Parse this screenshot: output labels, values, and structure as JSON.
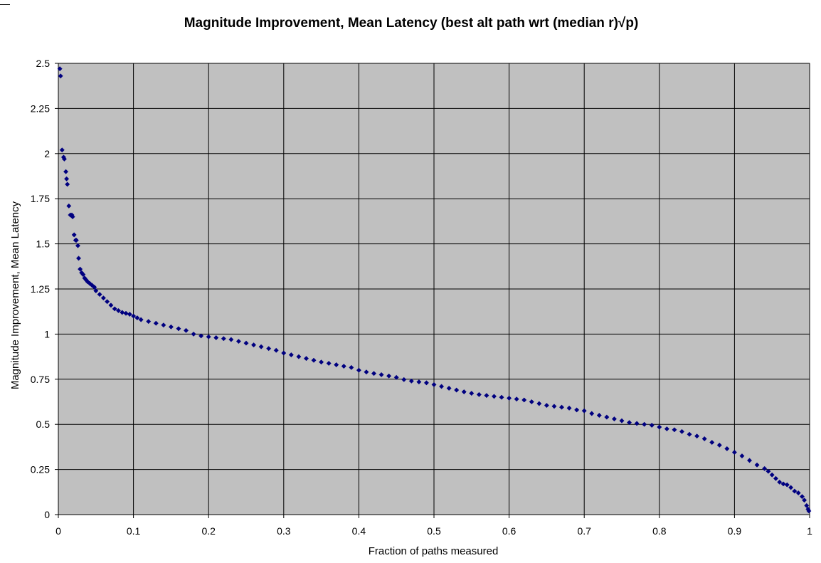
{
  "chart_data": {
    "type": "scatter",
    "title": "Magnitude Improvement, Mean Latency (best alt path wrt (median r)√p)",
    "xlabel": "Fraction of paths measured",
    "ylabel": "Magnitude Improvement, Mean Latency",
    "xlim": [
      0,
      1
    ],
    "ylim": [
      0,
      2.5
    ],
    "x_ticks": [
      "0",
      "0.1",
      "0.2",
      "0.3",
      "0.4",
      "0.5",
      "0.6",
      "0.7",
      "0.8",
      "0.9",
      "1"
    ],
    "y_ticks": [
      "0",
      "0.25",
      "0.5",
      "0.75",
      "1",
      "1.25",
      "1.5",
      "1.75",
      "2",
      "2.25",
      "2.5"
    ],
    "grid": true,
    "legend": "none",
    "plot_background": "#C0C0C0",
    "marker_color": "#000080",
    "marker": "diamond",
    "series": [
      {
        "points": [
          [
            0.002,
            2.47
          ],
          [
            0.003,
            2.43
          ],
          [
            0.005,
            2.02
          ],
          [
            0.007,
            1.98
          ],
          [
            0.008,
            1.97
          ],
          [
            0.01,
            1.9
          ],
          [
            0.011,
            1.86
          ],
          [
            0.012,
            1.83
          ],
          [
            0.014,
            1.71
          ],
          [
            0.016,
            1.66
          ],
          [
            0.018,
            1.66
          ],
          [
            0.019,
            1.65
          ],
          [
            0.021,
            1.55
          ],
          [
            0.023,
            1.52
          ],
          [
            0.024,
            1.52
          ],
          [
            0.026,
            1.49
          ],
          [
            0.027,
            1.42
          ],
          [
            0.029,
            1.36
          ],
          [
            0.031,
            1.34
          ],
          [
            0.033,
            1.33
          ],
          [
            0.035,
            1.31
          ],
          [
            0.037,
            1.3
          ],
          [
            0.039,
            1.29
          ],
          [
            0.042,
            1.28
          ],
          [
            0.045,
            1.27
          ],
          [
            0.048,
            1.26
          ],
          [
            0.05,
            1.24
          ],
          [
            0.055,
            1.22
          ],
          [
            0.06,
            1.2
          ],
          [
            0.065,
            1.18
          ],
          [
            0.07,
            1.16
          ],
          [
            0.075,
            1.14
          ],
          [
            0.08,
            1.13
          ],
          [
            0.085,
            1.12
          ],
          [
            0.09,
            1.115
          ],
          [
            0.095,
            1.11
          ],
          [
            0.1,
            1.1
          ],
          [
            0.105,
            1.09
          ],
          [
            0.11,
            1.08
          ],
          [
            0.12,
            1.07
          ],
          [
            0.13,
            1.06
          ],
          [
            0.14,
            1.05
          ],
          [
            0.15,
            1.04
          ],
          [
            0.16,
            1.03
          ],
          [
            0.17,
            1.02
          ],
          [
            0.18,
            1.0
          ],
          [
            0.19,
            0.99
          ],
          [
            0.2,
            0.985
          ],
          [
            0.21,
            0.98
          ],
          [
            0.22,
            0.975
          ],
          [
            0.23,
            0.97
          ],
          [
            0.24,
            0.96
          ],
          [
            0.25,
            0.95
          ],
          [
            0.26,
            0.94
          ],
          [
            0.27,
            0.93
          ],
          [
            0.28,
            0.92
          ],
          [
            0.29,
            0.91
          ],
          [
            0.3,
            0.895
          ],
          [
            0.31,
            0.885
          ],
          [
            0.32,
            0.875
          ],
          [
            0.33,
            0.865
          ],
          [
            0.34,
            0.855
          ],
          [
            0.35,
            0.845
          ],
          [
            0.36,
            0.838
          ],
          [
            0.37,
            0.83
          ],
          [
            0.38,
            0.822
          ],
          [
            0.39,
            0.815
          ],
          [
            0.4,
            0.8
          ],
          [
            0.41,
            0.79
          ],
          [
            0.42,
            0.782
          ],
          [
            0.43,
            0.775
          ],
          [
            0.44,
            0.768
          ],
          [
            0.45,
            0.76
          ],
          [
            0.46,
            0.748
          ],
          [
            0.47,
            0.74
          ],
          [
            0.48,
            0.735
          ],
          [
            0.49,
            0.73
          ],
          [
            0.5,
            0.72
          ],
          [
            0.51,
            0.71
          ],
          [
            0.52,
            0.7
          ],
          [
            0.53,
            0.69
          ],
          [
            0.54,
            0.68
          ],
          [
            0.55,
            0.672
          ],
          [
            0.56,
            0.665
          ],
          [
            0.57,
            0.66
          ],
          [
            0.58,
            0.655
          ],
          [
            0.59,
            0.65
          ],
          [
            0.6,
            0.645
          ],
          [
            0.61,
            0.64
          ],
          [
            0.62,
            0.635
          ],
          [
            0.63,
            0.625
          ],
          [
            0.64,
            0.615
          ],
          [
            0.65,
            0.605
          ],
          [
            0.66,
            0.6
          ],
          [
            0.67,
            0.595
          ],
          [
            0.68,
            0.59
          ],
          [
            0.69,
            0.58
          ],
          [
            0.7,
            0.575
          ],
          [
            0.71,
            0.56
          ],
          [
            0.72,
            0.55
          ],
          [
            0.73,
            0.54
          ],
          [
            0.74,
            0.53
          ],
          [
            0.75,
            0.52
          ],
          [
            0.76,
            0.51
          ],
          [
            0.77,
            0.505
          ],
          [
            0.78,
            0.5
          ],
          [
            0.79,
            0.495
          ],
          [
            0.8,
            0.485
          ],
          [
            0.81,
            0.475
          ],
          [
            0.82,
            0.47
          ],
          [
            0.83,
            0.46
          ],
          [
            0.84,
            0.445
          ],
          [
            0.85,
            0.435
          ],
          [
            0.86,
            0.42
          ],
          [
            0.87,
            0.4
          ],
          [
            0.88,
            0.385
          ],
          [
            0.89,
            0.365
          ],
          [
            0.9,
            0.345
          ],
          [
            0.91,
            0.325
          ],
          [
            0.92,
            0.3
          ],
          [
            0.93,
            0.275
          ],
          [
            0.94,
            0.255
          ],
          [
            0.945,
            0.24
          ],
          [
            0.95,
            0.22
          ],
          [
            0.955,
            0.2
          ],
          [
            0.96,
            0.18
          ],
          [
            0.965,
            0.17
          ],
          [
            0.97,
            0.165
          ],
          [
            0.975,
            0.15
          ],
          [
            0.98,
            0.13
          ],
          [
            0.985,
            0.12
          ],
          [
            0.99,
            0.1
          ],
          [
            0.993,
            0.08
          ],
          [
            0.996,
            0.05
          ],
          [
            0.998,
            0.03
          ],
          [
            0.999,
            0.02
          ]
        ]
      }
    ]
  }
}
